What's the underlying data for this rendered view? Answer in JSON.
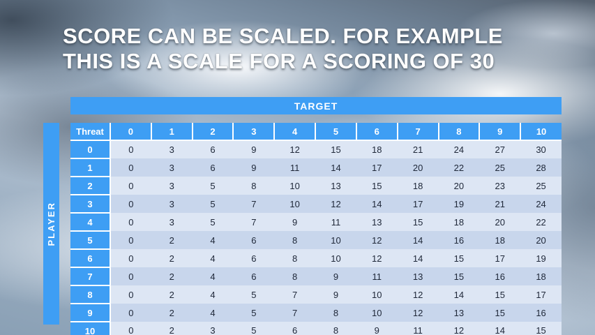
{
  "title": {
    "line1": "SCORE CAN BE SCALED. FOR EXAMPLE",
    "line2": "THIS IS A SCALE FOR A SCORING OF 30"
  },
  "table": {
    "target_label": "TARGET",
    "player_label": "PLAYER",
    "corner_label": "Threat",
    "col_headers": [
      "0",
      "1",
      "2",
      "3",
      "4",
      "5",
      "6",
      "7",
      "8",
      "9",
      "10"
    ],
    "rows": [
      {
        "label": "0",
        "values": [
          0,
          3,
          6,
          9,
          12,
          15,
          18,
          21,
          24,
          27,
          30
        ]
      },
      {
        "label": "1",
        "values": [
          0,
          3,
          6,
          9,
          11,
          14,
          17,
          20,
          22,
          25,
          28
        ]
      },
      {
        "label": "2",
        "values": [
          0,
          3,
          5,
          8,
          10,
          13,
          15,
          18,
          20,
          23,
          25
        ]
      },
      {
        "label": "3",
        "values": [
          0,
          3,
          5,
          7,
          10,
          12,
          14,
          17,
          19,
          21,
          24
        ]
      },
      {
        "label": "4",
        "values": [
          0,
          3,
          5,
          7,
          9,
          11,
          13,
          15,
          18,
          20,
          22
        ]
      },
      {
        "label": "5",
        "values": [
          0,
          2,
          4,
          6,
          8,
          10,
          12,
          14,
          16,
          18,
          20
        ]
      },
      {
        "label": "6",
        "values": [
          0,
          2,
          4,
          6,
          8,
          10,
          12,
          14,
          15,
          17,
          19
        ]
      },
      {
        "label": "7",
        "values": [
          0,
          2,
          4,
          6,
          8,
          9,
          11,
          13,
          15,
          16,
          18
        ]
      },
      {
        "label": "8",
        "values": [
          0,
          2,
          4,
          5,
          7,
          9,
          10,
          12,
          14,
          15,
          17
        ]
      },
      {
        "label": "9",
        "values": [
          0,
          2,
          4,
          5,
          7,
          8,
          10,
          12,
          13,
          15,
          16
        ]
      },
      {
        "label": "10",
        "values": [
          0,
          2,
          3,
          5,
          6,
          8,
          9,
          11,
          12,
          14,
          15
        ]
      }
    ]
  },
  "colors": {
    "accent_blue": "#3e9ef4",
    "row_light": "#dde6f4",
    "row_dark": "#c8d6ec",
    "title_text": "#ffffff"
  }
}
